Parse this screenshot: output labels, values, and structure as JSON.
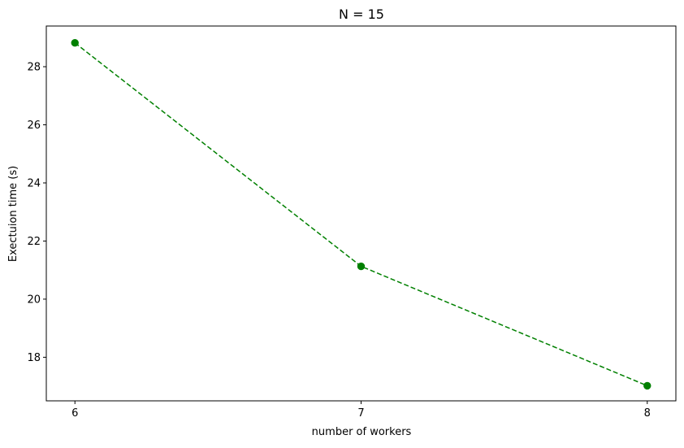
{
  "chart_data": {
    "type": "line",
    "title": "N = 15",
    "xlabel": "number of workers",
    "ylabel": "Exectuion time (s)",
    "x": [
      6,
      7,
      8
    ],
    "series": [
      {
        "values": [
          28.82,
          21.13,
          17.02
        ],
        "color": "#008000",
        "line_style": "dashed",
        "marker": "circle"
      }
    ],
    "xticks": [
      6,
      7,
      8
    ],
    "yticks": [
      18,
      20,
      22,
      24,
      26,
      28
    ],
    "xlim": [
      5.9,
      8.1
    ],
    "ylim": [
      16.5,
      29.4
    ],
    "grid": false,
    "legend": "none"
  }
}
